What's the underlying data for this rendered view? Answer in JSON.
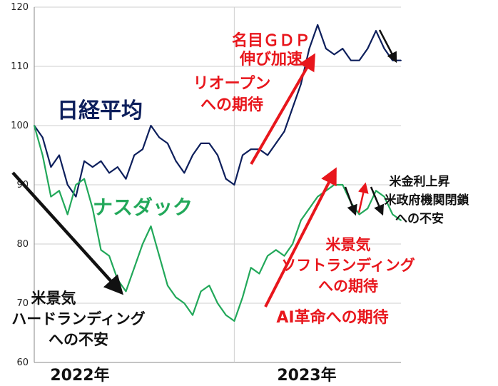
{
  "chart_data": {
    "type": "line",
    "ylim": [
      60,
      120
    ],
    "yticks": [
      60,
      70,
      80,
      90,
      100,
      110,
      120
    ],
    "xlim": [
      "2022-01",
      "2023-12"
    ],
    "grid": true,
    "xaxis_labels": [
      {
        "text": "2022年",
        "at": "2022-01"
      },
      {
        "text": "2023年",
        "at": "2023-01"
      }
    ],
    "x": [
      "2022-01-01",
      "2022-01-15",
      "2022-02-01",
      "2022-02-15",
      "2022-03-01",
      "2022-03-15",
      "2022-04-01",
      "2022-04-15",
      "2022-05-01",
      "2022-05-15",
      "2022-06-01",
      "2022-06-15",
      "2022-07-01",
      "2022-07-15",
      "2022-08-01",
      "2022-08-15",
      "2022-09-01",
      "2022-09-15",
      "2022-10-01",
      "2022-10-15",
      "2022-11-01",
      "2022-11-15",
      "2022-12-01",
      "2022-12-15",
      "2023-01-01",
      "2023-01-15",
      "2023-02-01",
      "2023-02-15",
      "2023-03-01",
      "2023-03-15",
      "2023-04-01",
      "2023-04-15",
      "2023-05-01",
      "2023-05-15",
      "2023-06-01",
      "2023-06-15",
      "2023-07-01",
      "2023-07-15",
      "2023-08-01",
      "2023-08-15",
      "2023-09-01",
      "2023-09-15",
      "2023-10-01",
      "2023-10-15",
      "2023-11-01"
    ],
    "series": [
      {
        "name": "日経平均",
        "color": "#0d1f5c",
        "values": [
          100,
          98,
          93,
          95,
          90,
          88,
          94,
          93,
          94,
          92,
          93,
          91,
          95,
          96,
          100,
          98,
          97,
          94,
          92,
          95,
          97,
          97,
          95,
          91,
          90,
          95,
          96,
          96,
          95,
          97,
          99,
          103,
          107,
          113,
          117,
          113,
          112,
          113,
          111,
          111,
          113,
          116,
          113,
          111,
          111
        ]
      },
      {
        "name": "ナスダック",
        "color": "#22a85a",
        "values": [
          100,
          95,
          88,
          89,
          85,
          90,
          91,
          86,
          79,
          78,
          74,
          72,
          76,
          80,
          83,
          78,
          73,
          71,
          70,
          68,
          72,
          73,
          70,
          68,
          67,
          71,
          76,
          75,
          78,
          79,
          78,
          80,
          84,
          86,
          88,
          89,
          90,
          90,
          87,
          85,
          86,
          89,
          88,
          85,
          84
        ]
      }
    ],
    "annotations": [
      {
        "text": [
          "名目ＧＤＰ",
          "伸び加速"
        ],
        "color": "#e8161c"
      },
      {
        "text": [
          "リオープン",
          "への期待"
        ],
        "color": "#e8161c"
      },
      {
        "text": [
          "米景気",
          "ソフトランディング",
          "への期待"
        ],
        "color": "#e8161c"
      },
      {
        "text": [
          "AI革命への期待"
        ],
        "color": "#e8161c"
      },
      {
        "text": [
          "米景気",
          "ハードランディング",
          "への不安"
        ],
        "color": "#111111"
      },
      {
        "text": [
          "米金利上昇",
          "米政府機関閉鎖",
          "への不安"
        ],
        "color": "#111111"
      }
    ]
  }
}
